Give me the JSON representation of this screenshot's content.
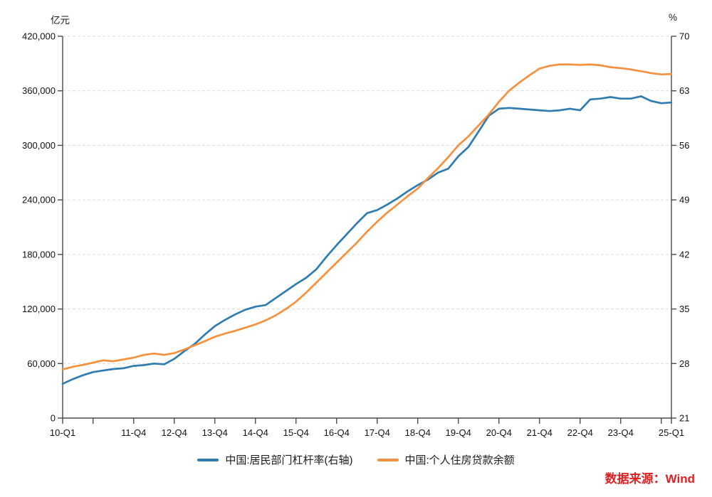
{
  "chart_data": {
    "type": "line",
    "title": "",
    "left_axis": {
      "unit": "亿元",
      "ylim": [
        0,
        420000
      ],
      "tick_values": [
        0,
        60000,
        120000,
        180000,
        240000,
        300000,
        360000,
        420000
      ],
      "tick_labels": [
        "0",
        "60,000",
        "120,000",
        "180,000",
        "240,000",
        "300,000",
        "360,000",
        "420,000"
      ]
    },
    "right_axis": {
      "unit": "%",
      "ylim": [
        21,
        70
      ],
      "tick_values": [
        21,
        28,
        35,
        42,
        49,
        56,
        63,
        70
      ],
      "tick_labels": [
        "21",
        "28",
        "35",
        "42",
        "49",
        "56",
        "63",
        "70"
      ]
    },
    "grid": "horizontal-dashed",
    "legend_position": "bottom-center",
    "x": [
      "10-Q1",
      "10-Q2",
      "10-Q3",
      "10-Q4",
      "11-Q1",
      "11-Q2",
      "11-Q3",
      "11-Q4",
      "12-Q1",
      "12-Q2",
      "12-Q3",
      "12-Q4",
      "13-Q1",
      "13-Q2",
      "13-Q3",
      "13-Q4",
      "14-Q1",
      "14-Q2",
      "14-Q3",
      "14-Q4",
      "15-Q1",
      "15-Q2",
      "15-Q3",
      "15-Q4",
      "16-Q1",
      "16-Q2",
      "16-Q3",
      "16-Q4",
      "17-Q1",
      "17-Q2",
      "17-Q3",
      "17-Q4",
      "18-Q1",
      "18-Q2",
      "18-Q3",
      "18-Q4",
      "19-Q1",
      "19-Q2",
      "19-Q3",
      "19-Q4",
      "20-Q1",
      "20-Q2",
      "20-Q3",
      "20-Q4",
      "21-Q1",
      "21-Q2",
      "21-Q3",
      "21-Q4",
      "22-Q1",
      "22-Q2",
      "22-Q3",
      "22-Q4",
      "23-Q1",
      "23-Q2",
      "23-Q3",
      "23-Q4",
      "24-Q1",
      "24-Q2",
      "24-Q3",
      "24-Q4",
      "25-Q1"
    ],
    "x_ticks": [
      {
        "index": 0,
        "label": "10-Q1"
      },
      {
        "index": 3,
        "label": ""
      },
      {
        "index": 7,
        "label": "11-Q4"
      },
      {
        "index": 11,
        "label": "12-Q4"
      },
      {
        "index": 15,
        "label": "13-Q4"
      },
      {
        "index": 19,
        "label": "14-Q4"
      },
      {
        "index": 23,
        "label": "15-Q4"
      },
      {
        "index": 27,
        "label": "16-Q4"
      },
      {
        "index": 31,
        "label": "17-Q4"
      },
      {
        "index": 35,
        "label": "18-Q4"
      },
      {
        "index": 39,
        "label": "19-Q4"
      },
      {
        "index": 43,
        "label": "20-Q4"
      },
      {
        "index": 47,
        "label": "21-Q4"
      },
      {
        "index": 51,
        "label": "22-Q4"
      },
      {
        "index": 55,
        "label": "23-Q4"
      },
      {
        "index": 59,
        "label": ""
      },
      {
        "index": 60,
        "label": "25-Q1"
      }
    ],
    "series": [
      {
        "name": "中国:居民部门杠杆率(右轴)",
        "axis": "right",
        "color": "#2E7CB0",
        "values": [
          25.4,
          26.0,
          26.5,
          26.9,
          27.1,
          27.3,
          27.4,
          27.7,
          27.8,
          28.0,
          27.9,
          28.6,
          29.6,
          30.5,
          31.7,
          32.8,
          33.6,
          34.3,
          34.9,
          35.3,
          35.5,
          36.4,
          37.3,
          38.2,
          39.0,
          40.1,
          41.7,
          43.2,
          44.6,
          46.0,
          47.3,
          47.7,
          48.4,
          49.2,
          50.1,
          50.9,
          51.6,
          52.5,
          53.0,
          54.6,
          55.8,
          57.8,
          59.8,
          60.7,
          60.8,
          60.7,
          60.6,
          60.5,
          60.4,
          60.5,
          60.7,
          60.5,
          61.9,
          62.0,
          62.2,
          62.0,
          62.0,
          62.3,
          61.7,
          61.4,
          61.5
        ]
      },
      {
        "name": "中国:个人住房贷款余额",
        "axis": "left",
        "color": "#F5913E",
        "values": [
          53500,
          56500,
          58500,
          61000,
          63500,
          62500,
          64500,
          66500,
          69500,
          71000,
          69500,
          71500,
          75500,
          80000,
          84500,
          89500,
          93000,
          96000,
          99500,
          103000,
          107500,
          113000,
          120000,
          128000,
          138000,
          149000,
          160000,
          171000,
          182000,
          193000,
          205000,
          216000,
          226000,
          235000,
          244000,
          252500,
          264000,
          275000,
          287000,
          300000,
          310000,
          322000,
          334000,
          348000,
          360000,
          369000,
          377000,
          384500,
          387500,
          389000,
          389000,
          388500,
          389000,
          388000,
          386000,
          385000,
          383500,
          381500,
          379500,
          378000,
          378500
        ]
      }
    ]
  },
  "source": {
    "label": "数据来源：Wind",
    "color": "#E02020"
  },
  "colors": {
    "background": "#FFFFFF",
    "axis": "#4A4A4A",
    "gridline": "#DADADA",
    "tick_text": "#111111",
    "series_blue": "#2E7CB0",
    "series_orange": "#F5913E"
  }
}
